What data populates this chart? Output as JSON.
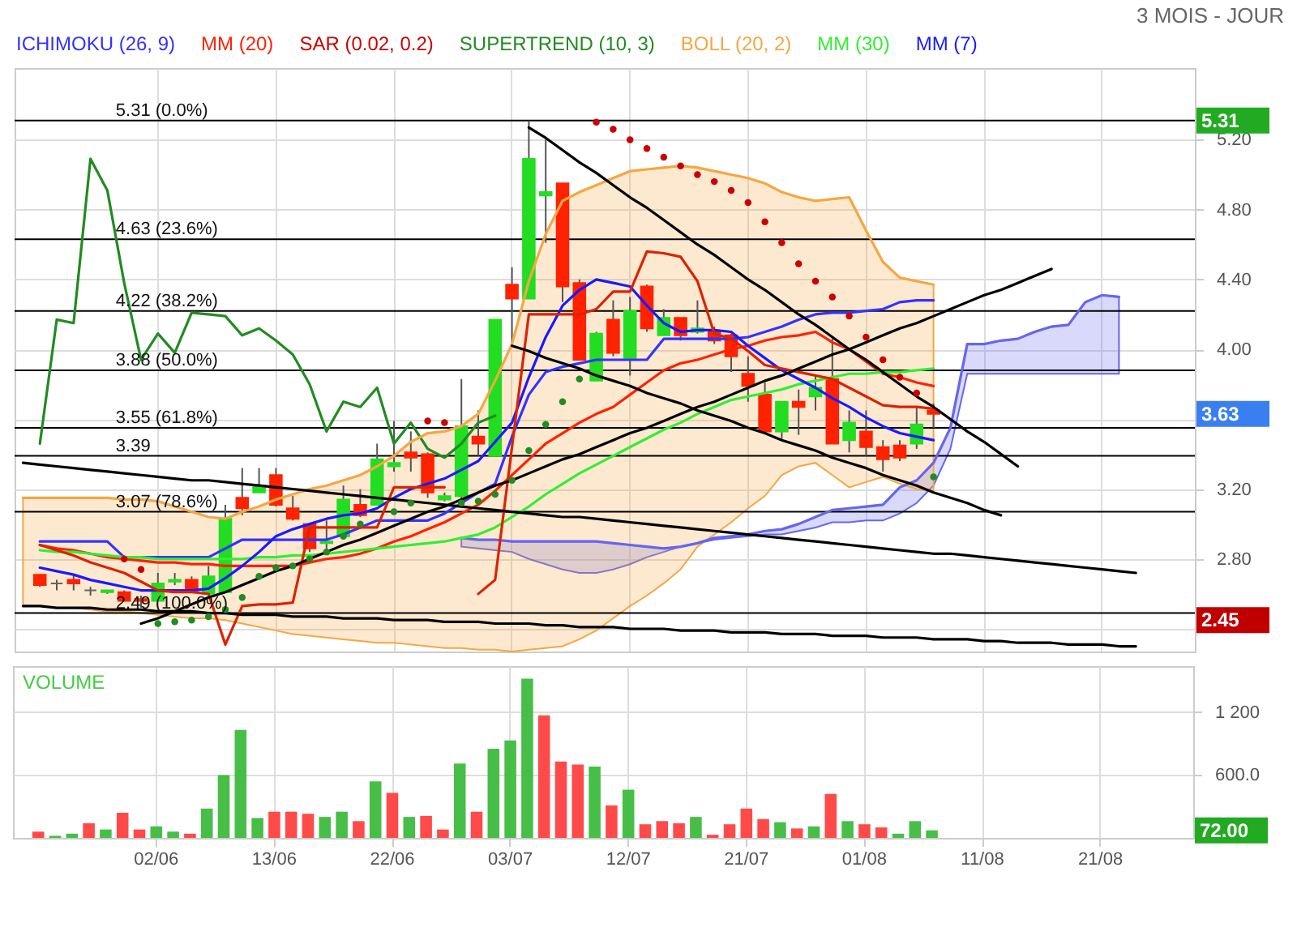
{
  "chart_data": [
    {
      "type": "candlestick",
      "subtitle": "3 MOIS - JOUR",
      "legend": "top left",
      "grid": true,
      "categories": [
        null,
        null,
        null,
        null,
        null,
        null,
        null,
        null,
        null,
        null,
        null,
        null,
        null,
        null,
        null,
        null,
        null,
        null,
        null,
        null,
        null,
        null,
        null,
        null,
        null,
        null,
        null,
        null,
        null,
        null,
        null,
        null,
        null,
        null,
        null,
        null,
        null,
        null,
        null,
        null,
        null,
        null,
        null,
        null,
        null,
        null,
        null,
        null,
        null,
        null,
        null,
        null,
        null,
        null,
        null,
        null,
        null,
        null,
        null,
        null,
        null,
        null,
        null,
        null,
        null,
        null,
        null,
        null,
        null,
        null
      ],
      "ylim": [
        2.27,
        5.61
      ],
      "yticks": [
        {
          "value": 2.4,
          "label": null
        },
        {
          "value": 2.8,
          "label": "2.80"
        },
        {
          "value": 3.2,
          "label": "3.20"
        },
        {
          "value": 3.6,
          "label": null
        },
        {
          "value": 4.0,
          "label": "4.00"
        },
        {
          "value": 4.4,
          "label": "4.40"
        },
        {
          "value": 4.8,
          "label": "4.80"
        },
        {
          "value": 5.2,
          "label": "5.20"
        }
      ],
      "ohlc": [
        null,
        [
          2.71,
          2.71,
          2.64,
          2.65
        ],
        [
          2.66,
          2.68,
          2.62,
          2.66
        ],
        [
          2.68,
          2.71,
          2.62,
          2.66
        ],
        [
          2.62,
          2.64,
          2.59,
          2.62
        ],
        [
          2.61,
          2.62,
          2.6,
          2.62
        ],
        [
          2.61,
          2.62,
          2.56,
          2.56
        ],
        [
          2.57,
          2.59,
          2.52,
          2.56
        ],
        [
          2.56,
          2.72,
          2.56,
          2.66
        ],
        [
          2.67,
          2.72,
          2.65,
          2.68
        ],
        [
          2.68,
          2.7,
          2.62,
          2.62
        ],
        [
          2.6,
          2.76,
          2.6,
          2.7
        ],
        [
          2.61,
          3.11,
          2.61,
          3.03
        ],
        [
          3.15,
          3.32,
          3.05,
          3.09
        ],
        [
          3.18,
          3.32,
          3.18,
          3.22
        ],
        [
          3.28,
          3.32,
          3.1,
          3.11
        ],
        [
          3.09,
          3.16,
          3.02,
          3.03
        ],
        [
          3.0,
          3.0,
          2.84,
          2.86
        ],
        [
          2.89,
          3.02,
          2.85,
          2.9
        ],
        [
          2.93,
          3.22,
          2.93,
          3.14
        ],
        [
          3.11,
          3.2,
          3.04,
          3.05
        ],
        [
          3.11,
          3.46,
          3.11,
          3.37
        ],
        [
          3.33,
          3.59,
          3.3,
          3.35
        ],
        [
          3.41,
          3.53,
          3.3,
          3.38
        ],
        [
          3.4,
          3.41,
          3.15,
          3.18
        ],
        [
          3.14,
          3.18,
          3.13,
          3.16
        ],
        [
          3.16,
          3.83,
          3.14,
          3.56
        ],
        [
          3.5,
          3.65,
          3.39,
          3.46
        ],
        [
          3.39,
          4.17,
          3.39,
          4.17
        ],
        [
          4.37,
          4.47,
          4.02,
          4.29
        ],
        [
          4.29,
          5.31,
          4.29,
          5.09
        ],
        [
          4.88,
          5.2,
          4.61,
          4.9
        ],
        [
          4.95,
          4.95,
          4.27,
          4.36
        ],
        [
          4.38,
          4.4,
          3.94,
          3.94
        ],
        [
          3.82,
          4.1,
          3.82,
          4.09
        ],
        [
          4.17,
          4.28,
          3.96,
          3.98
        ],
        [
          3.95,
          4.3,
          3.85,
          4.22
        ],
        [
          4.36,
          4.37,
          4.1,
          4.12
        ],
        [
          4.08,
          4.23,
          4.08,
          4.18
        ],
        [
          4.18,
          4.18,
          4.05,
          4.08
        ],
        [
          4.1,
          4.28,
          4.09,
          4.12
        ],
        [
          4.1,
          4.13,
          4.03,
          4.05
        ],
        [
          4.08,
          4.09,
          3.87,
          3.96
        ],
        [
          3.86,
          3.96,
          3.7,
          3.79
        ],
        [
          3.74,
          3.81,
          3.53,
          3.53
        ],
        [
          3.53,
          3.7,
          3.48,
          3.7
        ],
        [
          3.7,
          3.77,
          3.51,
          3.67
        ],
        [
          3.73,
          3.85,
          3.65,
          3.78
        ],
        [
          3.83,
          4.06,
          3.46,
          3.46
        ],
        [
          3.48,
          3.65,
          3.41,
          3.58
        ],
        [
          3.53,
          3.65,
          3.39,
          3.44
        ],
        [
          3.44,
          3.48,
          3.3,
          3.37
        ],
        [
          3.45,
          3.48,
          3.36,
          3.38
        ],
        [
          3.46,
          3.67,
          3.43,
          3.57
        ],
        [
          3.65,
          3.69,
          3.55,
          3.63
        ],
        null,
        null,
        null,
        null,
        null,
        null,
        null,
        null,
        null,
        null,
        null,
        null,
        null,
        null,
        null
      ],
      "colors": [
        null,
        "#ff2200",
        "#666666",
        "#ff2200",
        "#666666",
        "#22dd22",
        "#ff2200",
        "#ff2200",
        "#22dd22",
        "#22dd22",
        "#ff2200",
        "#22dd22",
        "#22dd22",
        "#ff2200",
        "#22dd22",
        "#ff2200",
        "#ff2200",
        "#ff2200",
        "#22dd22",
        "#22dd22",
        "#ff2200",
        "#22dd22",
        "#22dd22",
        "#ff2200",
        "#ff2200",
        "#22dd22",
        "#22dd22",
        "#ff2200",
        "#22dd22",
        "#ff2200",
        "#22dd22",
        "#22dd22",
        "#ff2200",
        "#ff2200",
        "#22dd22",
        "#ff2200",
        "#22dd22",
        "#ff2200",
        "#22dd22",
        "#ff2200",
        "#22dd22",
        "#ff2200",
        "#ff2200",
        "#ff2200",
        "#ff2200",
        "#22dd22",
        "#ff2200",
        "#22dd22",
        "#ff2200",
        "#22dd22",
        "#ff2200",
        "#ff2200",
        "#ff2200",
        "#22dd22",
        "#ff2200",
        null,
        null,
        null,
        null,
        null,
        null,
        null,
        null,
        null,
        null,
        null,
        null,
        null,
        null,
        null
      ],
      "series": [
        {
          "type": "line",
          "color": "#6666ee",
          "values": [
            null,
            null,
            null,
            null,
            null,
            null,
            null,
            null,
            null,
            null,
            null,
            null,
            null,
            null,
            null,
            null,
            null,
            null,
            null,
            null,
            null,
            null,
            null,
            null,
            null,
            null,
            2.92,
            2.91,
            2.91,
            2.9,
            2.9,
            2.9,
            2.9,
            2.9,
            2.9,
            2.89,
            2.88,
            2.87,
            2.86,
            2.87,
            2.89,
            2.92,
            2.93,
            2.94,
            2.96,
            2.97,
            3.0,
            3.04,
            3.08,
            3.09,
            3.1,
            3.11,
            3.21,
            3.25,
            3.35,
            3.55,
            4.03,
            4.03,
            4.05,
            4.06,
            4.1,
            4.13,
            4.14,
            4.27,
            4.31,
            4.3,
            null,
            null,
            null,
            null
          ],
          "upper": [
            null,
            null,
            null,
            null,
            null,
            null,
            null,
            null,
            null,
            null,
            null,
            null,
            null,
            null,
            null,
            null,
            null,
            null,
            null,
            null,
            null,
            null,
            null,
            null,
            null,
            null,
            2.92,
            2.91,
            2.91,
            2.9,
            2.9,
            2.9,
            2.9,
            2.9,
            2.9,
            2.89,
            2.88,
            2.87,
            2.86,
            2.87,
            2.89,
            2.92,
            2.93,
            2.94,
            2.96,
            2.97,
            3.0,
            3.04,
            3.08,
            3.09,
            3.1,
            3.11,
            3.21,
            3.25,
            3.35,
            3.55,
            4.03,
            4.03,
            4.05,
            4.06,
            4.1,
            4.13,
            4.14,
            4.27,
            4.31,
            4.3,
            null,
            null,
            null,
            null
          ],
          "lower": [
            null,
            null,
            null,
            null,
            null,
            null,
            null,
            null,
            null,
            null,
            null,
            null,
            null,
            null,
            null,
            null,
            null,
            null,
            null,
            null,
            null,
            null,
            null,
            null,
            null,
            null,
            2.87,
            2.86,
            2.85,
            2.84,
            2.8,
            2.77,
            2.74,
            2.72,
            2.72,
            2.74,
            2.77,
            2.81,
            2.84,
            2.87,
            2.89,
            2.91,
            2.92,
            2.93,
            2.94,
            2.94,
            2.96,
            2.98,
            3.01,
            3.01,
            3.02,
            3.02,
            3.06,
            3.12,
            3.22,
            3.43,
            3.86,
            3.86,
            3.86,
            3.86,
            3.86,
            3.86,
            3.86,
            3.86,
            3.86,
            3.86,
            null,
            null,
            null,
            null
          ]
        },
        {
          "name": "ICHIMOKU (26, 9)",
          "type": "line",
          "color": "#3333ff",
          "values": [
            null,
            2.9,
            2.9,
            2.9,
            2.9,
            2.9,
            2.81,
            2.81,
            2.81,
            2.81,
            2.81,
            2.81,
            2.86,
            2.91,
            2.91,
            2.91,
            2.91,
            2.91,
            2.91,
            2.94,
            2.98,
            3.02,
            3.02,
            3.02,
            3.02,
            3.06,
            3.12,
            3.18,
            3.23,
            3.5,
            3.74,
            3.87,
            3.9,
            3.92,
            3.94,
            3.94,
            3.94,
            3.94,
            4.06,
            4.06,
            4.06,
            4.06,
            4.06,
            4.07,
            4.1,
            4.13,
            4.17,
            4.2,
            4.21,
            4.21,
            4.22,
            4.23,
            4.27,
            4.28,
            4.28,
            null,
            null,
            null,
            null,
            null,
            null,
            null,
            null,
            null,
            null,
            null,
            null,
            null,
            null,
            null
          ]
        },
        {
          "name": "MM (20)",
          "type": "line",
          "color": "#ff2200",
          "values": [
            null,
            2.88,
            2.86,
            2.85,
            2.83,
            2.81,
            2.8,
            2.79,
            2.78,
            2.78,
            2.77,
            2.77,
            2.76,
            2.76,
            2.76,
            2.76,
            2.76,
            2.78,
            2.8,
            2.81,
            2.83,
            2.86,
            2.9,
            2.93,
            2.97,
            3.01,
            3.06,
            3.11,
            3.19,
            3.28,
            3.37,
            3.46,
            3.52,
            3.58,
            3.63,
            3.67,
            3.74,
            3.81,
            3.88,
            3.92,
            3.94,
            3.97,
            4.0,
            4.02,
            4.05,
            4.07,
            4.08,
            4.1,
            4.04,
            4.0,
            3.93,
            3.86,
            3.84,
            3.81,
            3.79,
            null,
            null,
            null,
            null,
            null,
            null,
            null,
            null,
            null,
            null,
            null,
            null,
            null,
            null,
            null
          ]
        },
        {
          "name": "SAR (0.02, 0.2)",
          "type": "scatter",
          "marker": "circle",
          "color": "#cc0000",
          "values": [
            null,
            null,
            null,
            null,
            null,
            null,
            2.8,
            2.74,
            null,
            null,
            null,
            null,
            null,
            null,
            null,
            null,
            null,
            null,
            null,
            null,
            null,
            null,
            null,
            null,
            3.59,
            3.58,
            null,
            null,
            null,
            null,
            null,
            null,
            null,
            null,
            5.3,
            5.26,
            5.2,
            5.15,
            5.1,
            5.05,
            5.0,
            4.96,
            4.91,
            4.84,
            4.73,
            4.61,
            4.49,
            4.39,
            4.3,
            4.19,
            4.07,
            3.94,
            3.84,
            3.75,
            null,
            null,
            null,
            null,
            null,
            null,
            null,
            null,
            null,
            null,
            null,
            null,
            null,
            null,
            null,
            null
          ]
        },
        {
          "name": "SUPERTREND (10, 3)",
          "type": "line",
          "color": "#228b22",
          "values": [
            null,
            3.46,
            4.17,
            4.15,
            5.09,
            4.91,
            4.38,
            3.94,
            4.09,
            3.98,
            4.21,
            4.2,
            4.19,
            4.08,
            4.12,
            4.05,
            3.97,
            3.8,
            3.53,
            3.7,
            3.67,
            3.78,
            3.46,
            3.58,
            3.43,
            3.38,
            3.46,
            3.58,
            3.62,
            null,
            null,
            null,
            null,
            null,
            null,
            null,
            null,
            null,
            null,
            null,
            null,
            null,
            null,
            null,
            null,
            null,
            null,
            null,
            null,
            null,
            null,
            null,
            null,
            null,
            null,
            null,
            null,
            null,
            null,
            null,
            null,
            null,
            null,
            null,
            null,
            null,
            null,
            null,
            null,
            null
          ]
        },
        {
          "name": "BOLL (20, 2)",
          "type": "line",
          "color": "#f5a742",
          "values": [
            3.15,
            3.15,
            3.15,
            3.15,
            3.15,
            3.15,
            3.14,
            3.14,
            3.13,
            3.1,
            3.07,
            3.04,
            3.03,
            3.07,
            3.1,
            3.14,
            3.17,
            3.2,
            3.22,
            3.25,
            3.28,
            3.33,
            3.39,
            3.47,
            3.52,
            3.53,
            3.56,
            3.63,
            3.82,
            4.03,
            4.39,
            4.66,
            4.85,
            4.9,
            4.94,
            4.98,
            5.02,
            5.03,
            5.04,
            5.05,
            5.04,
            5.02,
            5.0,
            4.98,
            4.95,
            4.9,
            4.87,
            4.85,
            4.86,
            4.87,
            4.68,
            4.5,
            4.41,
            4.39,
            4.37,
            null,
            null,
            null,
            null,
            null,
            null,
            null,
            null,
            null,
            null,
            null,
            null,
            null,
            null,
            null
          ],
          "upper": [
            3.15,
            3.15,
            3.15,
            3.15,
            3.15,
            3.15,
            3.14,
            3.14,
            3.13,
            3.1,
            3.07,
            3.04,
            3.03,
            3.07,
            3.1,
            3.14,
            3.17,
            3.2,
            3.22,
            3.25,
            3.28,
            3.33,
            3.39,
            3.47,
            3.52,
            3.53,
            3.56,
            3.63,
            3.82,
            4.03,
            4.39,
            4.66,
            4.85,
            4.9,
            4.94,
            4.98,
            5.02,
            5.03,
            5.04,
            5.05,
            5.04,
            5.02,
            5.0,
            4.98,
            4.95,
            4.9,
            4.87,
            4.85,
            4.86,
            4.87,
            4.68,
            4.5,
            4.41,
            4.39,
            4.37,
            null,
            null,
            null,
            null,
            null,
            null,
            null,
            null,
            null,
            null,
            null,
            null,
            null,
            null,
            null
          ],
          "lower": [
            2.53,
            2.53,
            2.52,
            2.52,
            2.51,
            2.5,
            2.5,
            2.49,
            2.48,
            2.47,
            2.46,
            2.46,
            2.45,
            2.43,
            2.41,
            2.39,
            2.37,
            2.36,
            2.35,
            2.34,
            2.33,
            2.32,
            2.32,
            2.31,
            2.3,
            2.29,
            2.29,
            2.28,
            2.28,
            2.27,
            2.28,
            2.29,
            2.3,
            2.34,
            2.39,
            2.46,
            2.53,
            2.59,
            2.66,
            2.74,
            2.87,
            2.94,
            3.01,
            3.09,
            3.16,
            3.28,
            3.33,
            3.35,
            3.28,
            3.21,
            3.24,
            3.27,
            3.23,
            3.2,
            3.19,
            null,
            null,
            null,
            null,
            null,
            null,
            null,
            null,
            null,
            null,
            null,
            null,
            null,
            null,
            null
          ]
        },
        {
          "name": "MM (30)",
          "type": "line",
          "color": "#33ee33",
          "values": [
            null,
            2.85,
            2.84,
            2.84,
            2.83,
            2.82,
            2.81,
            2.81,
            2.8,
            2.8,
            2.8,
            2.8,
            2.8,
            2.8,
            2.81,
            2.81,
            2.82,
            2.82,
            2.83,
            2.84,
            2.85,
            2.86,
            2.87,
            2.88,
            2.89,
            2.9,
            2.92,
            2.94,
            2.98,
            3.04,
            3.1,
            3.17,
            3.23,
            3.29,
            3.34,
            3.39,
            3.44,
            3.49,
            3.54,
            3.58,
            3.63,
            3.67,
            3.71,
            3.73,
            3.75,
            3.77,
            3.8,
            3.82,
            3.84,
            3.86,
            3.86,
            3.87,
            3.87,
            3.88,
            3.89,
            null,
            null,
            null,
            null,
            null,
            null,
            null,
            null,
            null,
            null,
            null,
            null,
            null,
            null,
            null
          ]
        },
        {
          "name": "MM (7)",
          "type": "line",
          "color": "#1a1aff",
          "values": [
            null,
            2.75,
            2.73,
            2.71,
            2.68,
            2.66,
            2.64,
            2.62,
            2.62,
            2.62,
            2.62,
            2.63,
            2.69,
            2.76,
            2.84,
            2.93,
            2.97,
            3.0,
            3.03,
            3.05,
            3.06,
            3.09,
            3.15,
            3.2,
            3.23,
            3.26,
            3.31,
            3.36,
            3.47,
            3.58,
            3.84,
            4.07,
            4.25,
            4.34,
            4.4,
            4.38,
            4.36,
            4.25,
            4.15,
            4.1,
            4.11,
            4.11,
            4.1,
            4.02,
            3.95,
            3.88,
            3.83,
            3.78,
            3.72,
            3.67,
            3.61,
            3.56,
            3.52,
            3.5,
            3.48,
            null,
            null,
            null,
            null,
            null,
            null,
            null,
            null,
            null,
            null,
            null,
            null,
            null,
            null,
            null
          ]
        },
        {
          "type": "scatter",
          "marker": "circle",
          "color": "#228b22",
          "values": [
            null,
            null,
            null,
            null,
            null,
            null,
            null,
            null,
            2.43,
            2.44,
            2.45,
            2.47,
            2.51,
            2.58,
            2.7,
            2.75,
            2.76,
            2.8,
            2.84,
            2.93,
            3.0,
            null,
            3.07,
            3.12,
            null,
            null,
            3.12,
            3.13,
            3.17,
            3.25,
            3.42,
            3.57,
            3.7,
            3.83,
            null,
            null,
            null,
            null,
            null,
            null,
            null,
            null,
            null,
            null,
            null,
            null,
            null,
            null,
            null,
            null,
            null,
            null,
            null,
            null,
            3.27,
            null,
            null,
            null,
            null,
            null,
            null,
            null,
            null,
            null,
            null,
            null,
            null,
            null,
            null,
            null
          ]
        },
        {
          "type": "line",
          "color": "#dd2200",
          "values": [
            null,
            2.88,
            2.85,
            2.82,
            2.78,
            2.75,
            2.72,
            2.67,
            2.62,
            2.61,
            2.61,
            2.6,
            2.31,
            2.53,
            2.54,
            2.54,
            2.55,
            2.98,
            2.98,
            2.98,
            2.98,
            2.98,
            3.21,
            3.21,
            3.21,
            3.21,
            null,
            2.6,
            2.68,
            3.44,
            4.2,
            4.2,
            4.2,
            4.2,
            4.23,
            4.33,
            4.33,
            4.56,
            4.55,
            4.53,
            4.39,
            4.09,
            4.06,
            3.99,
            3.91,
            3.89,
            3.87,
            3.85,
            3.83,
            3.78,
            3.73,
            3.68,
            3.67,
            3.67,
            3.66,
            null,
            null,
            null,
            null,
            null,
            null,
            null,
            null,
            null,
            null,
            null,
            null,
            null,
            null,
            null
          ]
        },
        {
          "type": "line",
          "color": "#000000",
          "values": [
            3.35,
            3.34,
            3.33,
            3.32,
            3.31,
            3.3,
            3.29,
            3.28,
            3.27,
            3.26,
            3.25,
            3.25,
            3.24,
            3.23,
            3.22,
            3.21,
            3.2,
            3.19,
            3.18,
            3.17,
            3.16,
            3.15,
            3.14,
            3.13,
            3.12,
            3.11,
            3.1,
            3.09,
            3.08,
            3.07,
            3.06,
            3.05,
            3.04,
            3.04,
            3.03,
            3.02,
            3.01,
            3.0,
            2.99,
            2.98,
            2.97,
            2.96,
            2.95,
            2.94,
            2.93,
            2.92,
            2.91,
            2.9,
            2.89,
            2.88,
            2.87,
            2.86,
            2.85,
            2.84,
            2.83,
            2.83,
            2.82,
            2.81,
            2.8,
            2.79,
            2.78,
            2.77,
            2.76,
            2.75,
            2.74,
            2.73,
            2.72,
            null,
            null,
            null
          ]
        },
        {
          "type": "line",
          "color": "#000000",
          "values": [
            2.53,
            2.53,
            2.52,
            2.52,
            2.52,
            2.51,
            2.51,
            2.51,
            2.5,
            2.5,
            2.5,
            2.49,
            2.49,
            2.48,
            2.48,
            2.48,
            2.47,
            2.47,
            2.47,
            2.46,
            2.46,
            2.46,
            2.45,
            2.45,
            2.45,
            2.44,
            2.44,
            2.44,
            2.43,
            2.43,
            2.43,
            2.42,
            2.42,
            2.41,
            2.41,
            2.41,
            2.4,
            2.4,
            2.4,
            2.39,
            2.39,
            2.39,
            2.38,
            2.38,
            2.38,
            2.37,
            2.37,
            2.37,
            2.36,
            2.36,
            2.36,
            2.35,
            2.35,
            2.35,
            2.34,
            2.34,
            2.34,
            2.33,
            2.33,
            2.32,
            2.32,
            2.32,
            2.31,
            2.31,
            2.31,
            2.3,
            2.3,
            null,
            null,
            null
          ]
        },
        {
          "type": "line",
          "color": "#000000",
          "values": [
            null,
            null,
            null,
            null,
            null,
            null,
            null,
            2.43,
            2.46,
            2.5,
            2.54,
            2.58,
            2.61,
            2.65,
            2.69,
            2.73,
            2.76,
            2.8,
            2.84,
            2.88,
            2.91,
            2.95,
            2.99,
            3.03,
            3.07,
            3.1,
            3.14,
            3.18,
            3.22,
            3.25,
            3.29,
            3.33,
            3.37,
            3.4,
            3.44,
            3.48,
            3.52,
            3.55,
            3.59,
            3.63,
            3.67,
            3.7,
            3.74,
            3.78,
            3.82,
            3.85,
            3.89,
            3.93,
            3.97,
            4.0,
            4.04,
            4.08,
            4.12,
            4.15,
            4.19,
            4.23,
            4.27,
            4.31,
            4.34,
            4.38,
            4.42,
            4.46,
            null,
            null,
            null,
            null,
            null,
            null,
            null,
            null
          ]
        },
        {
          "type": "line",
          "color": "#000000",
          "values": [
            null,
            null,
            null,
            null,
            null,
            null,
            null,
            null,
            null,
            null,
            null,
            null,
            null,
            null,
            null,
            null,
            null,
            null,
            null,
            null,
            null,
            null,
            null,
            null,
            null,
            null,
            null,
            null,
            null,
            null,
            5.27,
            5.21,
            5.14,
            5.07,
            5.01,
            4.94,
            4.87,
            4.81,
            4.74,
            4.67,
            4.6,
            4.54,
            4.47,
            4.4,
            4.34,
            4.27,
            4.2,
            4.14,
            4.07,
            4.0,
            3.94,
            3.87,
            3.8,
            3.73,
            3.67,
            3.6,
            3.53,
            3.47,
            3.4,
            3.33,
            null,
            null,
            null,
            null,
            null,
            null,
            null,
            null,
            null,
            null
          ]
        },
        {
          "type": "line",
          "color": "#000000",
          "values": [
            null,
            null,
            null,
            null,
            null,
            null,
            null,
            null,
            null,
            null,
            null,
            null,
            null,
            null,
            null,
            null,
            null,
            null,
            null,
            null,
            null,
            null,
            null,
            null,
            null,
            null,
            null,
            null,
            null,
            4.02,
            3.99,
            3.95,
            3.92,
            3.89,
            3.85,
            3.82,
            3.79,
            3.75,
            3.72,
            3.69,
            3.65,
            3.62,
            3.59,
            3.55,
            3.52,
            3.48,
            3.45,
            3.42,
            3.38,
            3.35,
            3.32,
            3.28,
            3.25,
            3.22,
            3.18,
            3.15,
            3.12,
            3.08,
            3.05,
            null,
            null,
            null,
            null,
            null,
            null,
            null,
            null,
            null,
            null,
            null
          ]
        }
      ],
      "ref_lines": [
        {
          "axis": "y",
          "value": 5.31,
          "label": "5.31 (0.0%)",
          "color": "#000000"
        },
        {
          "axis": "y",
          "value": 4.63,
          "label": "4.63 (23.6%)",
          "color": "#000000"
        },
        {
          "axis": "y",
          "value": 4.22,
          "label": "4.22 (38.2%)",
          "color": "#000000"
        },
        {
          "axis": "y",
          "value": 3.88,
          "label": "3.88 (50.0%)",
          "color": "#000000"
        },
        {
          "axis": "y",
          "value": 3.55,
          "label": "3.55 (61.8%)",
          "color": "#000000"
        },
        {
          "axis": "y",
          "value": 3.39,
          "label": "3.39",
          "color": "#000000"
        },
        {
          "axis": "y",
          "value": 3.07,
          "label": "3.07 (78.6%)",
          "color": "#000000"
        },
        {
          "axis": "y",
          "value": 2.49,
          "label": "2.49 (100.0%)",
          "color": "#000000"
        }
      ],
      "annotations": [
        "5.31",
        "3.63",
        "2.45"
      ]
    },
    {
      "type": "bar",
      "title": "VOLUME",
      "grid": true,
      "categories": [
        null,
        null,
        null,
        null,
        null,
        null,
        null,
        null,
        "02/06",
        null,
        null,
        null,
        null,
        null,
        null,
        "13/06",
        null,
        null,
        null,
        null,
        null,
        null,
        "22/06",
        null,
        null,
        null,
        null,
        null,
        null,
        "03/07",
        null,
        null,
        null,
        null,
        null,
        null,
        "12/07",
        null,
        null,
        null,
        null,
        null,
        null,
        "21/07",
        null,
        null,
        null,
        null,
        null,
        null,
        "01/08",
        null,
        null,
        null,
        null,
        null,
        null,
        "11/08",
        null,
        null,
        null,
        null,
        null,
        null,
        "21/08",
        null,
        null,
        null,
        null,
        null
      ],
      "ylim": [
        0,
        1640
      ],
      "yticks": [
        {
          "value": 600,
          "label": "600.0"
        },
        {
          "value": 1200,
          "label": "1 200"
        }
      ],
      "values": [
        null,
        60,
        20,
        40,
        140,
        80,
        240,
        80,
        110,
        60,
        40,
        280,
        600,
        1030,
        190,
        250,
        250,
        230,
        200,
        250,
        160,
        540,
        430,
        200,
        210,
        80,
        710,
        250,
        850,
        930,
        1520,
        1170,
        730,
        700,
        680,
        310,
        460,
        130,
        160,
        140,
        200,
        30,
        130,
        280,
        180,
        150,
        90,
        110,
        420,
        160,
        130,
        100,
        40,
        160,
        72,
        null,
        null,
        null,
        null,
        null,
        null,
        null,
        null,
        null,
        null,
        null,
        null,
        null,
        null,
        null
      ],
      "colors": [
        null,
        "#ff4040",
        "#3dbb3d",
        "#3dbb3d",
        "#ff4040",
        "#3dbb3d",
        "#ff4040",
        "#ff4040",
        "#3dbb3d",
        "#3dbb3d",
        "#ff4040",
        "#3dbb3d",
        "#3dbb3d",
        "#3dbb3d",
        "#3dbb3d",
        "#ff4040",
        "#ff4040",
        "#ff4040",
        "#3dbb3d",
        "#3dbb3d",
        "#ff4040",
        "#3dbb3d",
        "#ff4040",
        "#3dbb3d",
        "#ff4040",
        "#ff4040",
        "#3dbb3d",
        "#ff4040",
        "#3dbb3d",
        "#3dbb3d",
        "#3dbb3d",
        "#ff4040",
        "#ff4040",
        "#ff4040",
        "#3dbb3d",
        "#ff4040",
        "#3dbb3d",
        "#ff4040",
        "#ff4040",
        "#ff4040",
        "#3dbb3d",
        "#ff4040",
        "#ff4040",
        "#ff4040",
        "#ff4040",
        "#3dbb3d",
        "#ff4040",
        "#3dbb3d",
        "#ff4040",
        "#3dbb3d",
        "#ff4040",
        "#ff4040",
        "#3dbb3d",
        "#3dbb3d",
        "#3dbb3d",
        null,
        null,
        null,
        null,
        null,
        null,
        null,
        null,
        null,
        null,
        null,
        null,
        null,
        null,
        null
      ],
      "annotations": [
        "72.00"
      ]
    }
  ]
}
